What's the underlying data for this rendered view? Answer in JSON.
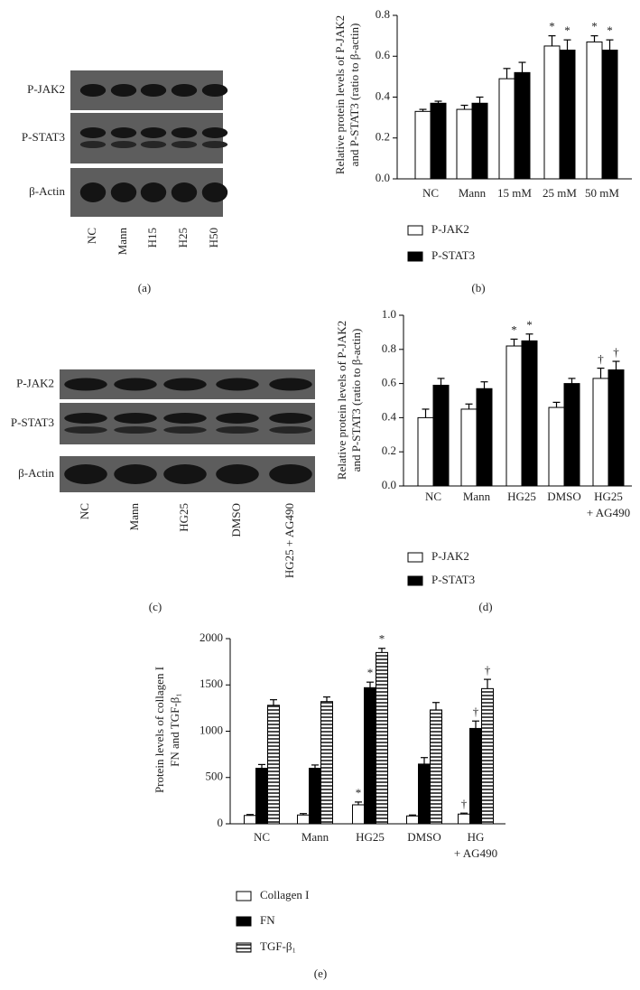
{
  "blots": [
    {
      "panel_label": "(a)",
      "rows": [
        "P-JAK2",
        "P-STAT3",
        "β-Actin"
      ],
      "lanes": [
        "NC",
        "Mann",
        "H15",
        "H25",
        "H50"
      ]
    },
    {
      "panel_label": "(c)",
      "rows": [
        "P-JAK2",
        "P-STAT3",
        "β-Actin"
      ],
      "lanes": [
        "NC",
        "Mann",
        "HG25",
        "DMSO",
        "HG25 + AG490"
      ]
    }
  ],
  "chart_data": [
    {
      "type": "bar",
      "panel_label": "(b)",
      "y_label": [
        "Relative protein levels of P-JAK2",
        "and P-STAT3 (ratio to β-actin)"
      ],
      "categories": [
        "NC",
        "Mann",
        "15 mM",
        "25 mM",
        "50 mM"
      ],
      "series": [
        {
          "name": "P-JAK2",
          "color": "#ffffff",
          "values": [
            0.33,
            0.34,
            0.49,
            0.65,
            0.67
          ],
          "errors": [
            0.01,
            0.02,
            0.05,
            0.05,
            0.03
          ],
          "markers": [
            null,
            null,
            null,
            "*",
            "*"
          ]
        },
        {
          "name": "P-STAT3",
          "color": "#000000",
          "values": [
            0.37,
            0.37,
            0.52,
            0.63,
            0.63
          ],
          "errors": [
            0.01,
            0.03,
            0.05,
            0.05,
            0.05
          ],
          "markers": [
            null,
            null,
            null,
            "*",
            "*"
          ]
        }
      ],
      "ylim": [
        0,
        0.8
      ],
      "yticks": [
        {
          "value": 0,
          "label": "0.0"
        },
        0.2,
        0.4,
        0.6,
        0.8
      ]
    },
    {
      "type": "bar",
      "panel_label": "(d)",
      "y_label": [
        "Relative protein levels of P-JAK2",
        "and P-STAT3 (ratio to β-actin)"
      ],
      "categories": [
        "NC",
        "Mann",
        "HG25",
        "DMSO",
        [
          "HG25",
          "+ AG490"
        ]
      ],
      "series": [
        {
          "name": "P-JAK2",
          "color": "#ffffff",
          "values": [
            0.4,
            0.45,
            0.82,
            0.46,
            0.63
          ],
          "errors": [
            0.05,
            0.03,
            0.04,
            0.03,
            0.06
          ],
          "markers": [
            null,
            null,
            "*",
            null,
            "†"
          ]
        },
        {
          "name": "P-STAT3",
          "color": "#000000",
          "values": [
            0.59,
            0.57,
            0.85,
            0.6,
            0.68
          ],
          "errors": [
            0.04,
            0.04,
            0.04,
            0.03,
            0.05
          ],
          "markers": [
            null,
            null,
            "*",
            null,
            "†"
          ]
        }
      ],
      "ylim": [
        0,
        1.0
      ],
      "yticks": [
        {
          "value": 0,
          "label": "0.0"
        },
        0.2,
        0.4,
        0.6,
        0.8,
        {
          "value": 1,
          "label": "1.0"
        }
      ]
    },
    {
      "type": "bar",
      "panel_label": "(e)",
      "y_label": [
        "Protein levels of collagen I",
        "FN and TGF-β₁"
      ],
      "categories": [
        "NC",
        "Mann",
        "HG25",
        "DMSO",
        [
          "HG",
          "+ AG490"
        ]
      ],
      "series": [
        {
          "name": "Collagen I",
          "color": "#ffffff",
          "values": [
            90,
            95,
            205,
            85,
            105
          ],
          "errors": [
            10,
            15,
            30,
            10,
            10
          ],
          "markers": [
            null,
            null,
            "*",
            null,
            "†"
          ]
        },
        {
          "name": "FN",
          "color": "#000000",
          "values": [
            600,
            600,
            1470,
            645,
            1030
          ],
          "errors": [
            40,
            35,
            60,
            70,
            80
          ],
          "markers": [
            null,
            null,
            "*",
            null,
            "†"
          ]
        },
        {
          "name": "TGF-β₁",
          "color": "#ffffff",
          "pattern": "horizontal-lines",
          "values": [
            1280,
            1320,
            1850,
            1230,
            1460
          ],
          "errors": [
            60,
            50,
            45,
            80,
            100
          ],
          "markers": [
            null,
            null,
            "*",
            null,
            "†"
          ]
        }
      ],
      "ylim": [
        0,
        2000
      ],
      "yticks": [
        0,
        500,
        1000,
        1500,
        2000
      ]
    }
  ]
}
